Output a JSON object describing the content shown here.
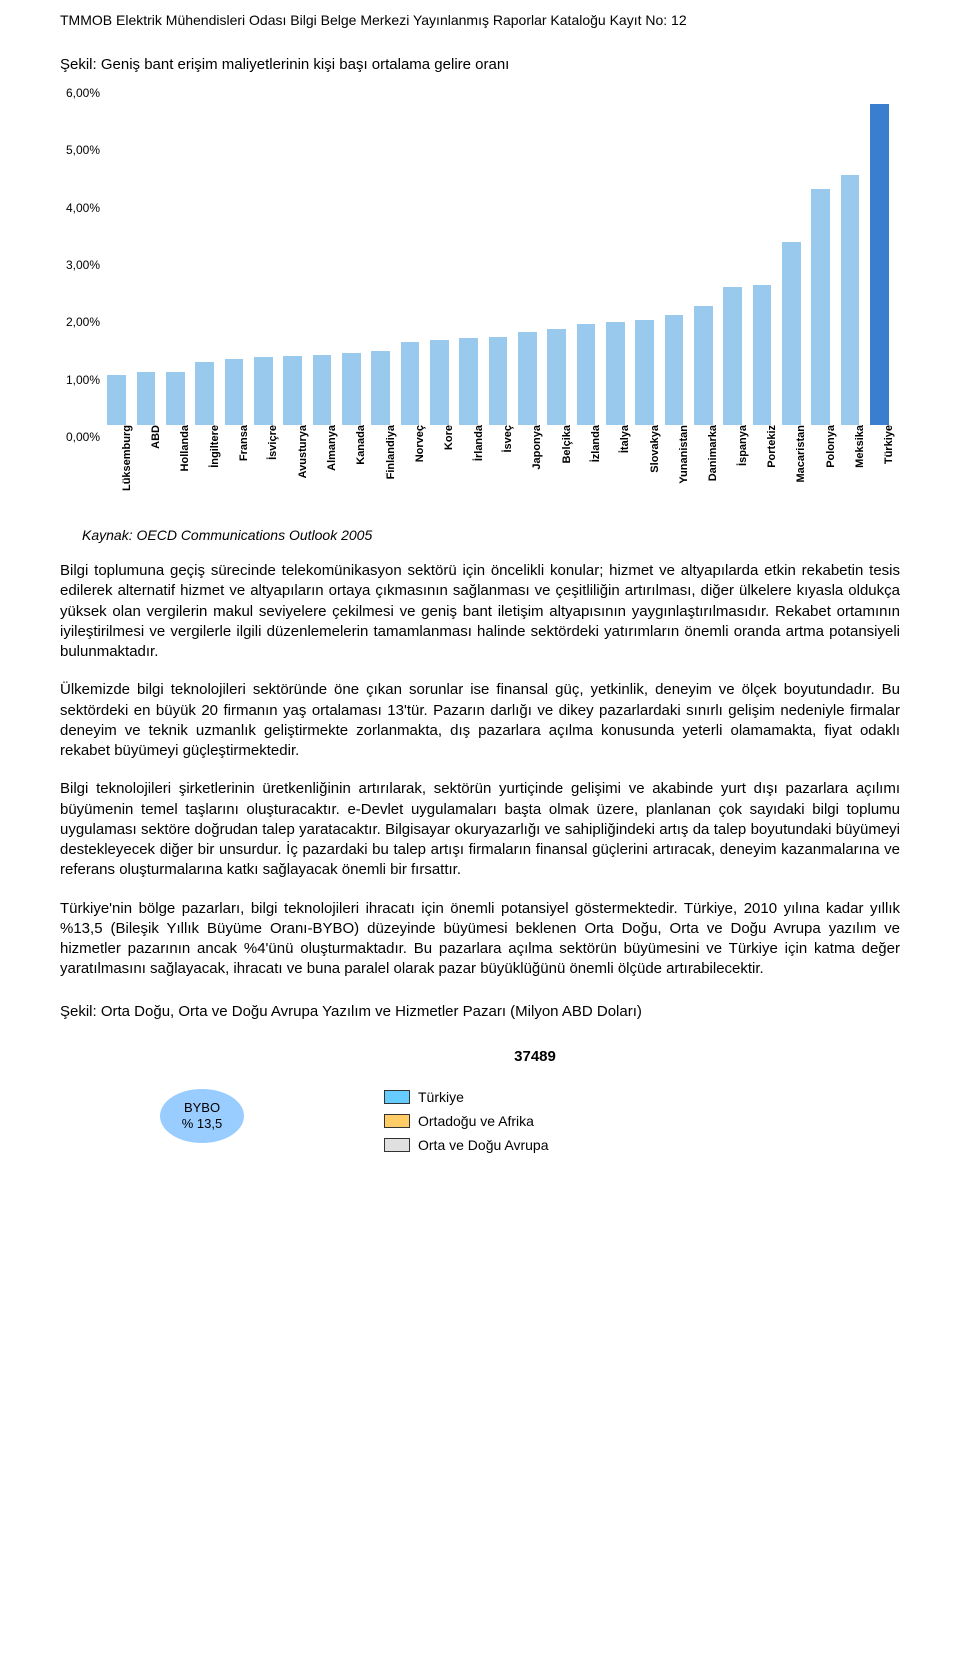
{
  "header_line": "TMMOB Elektrik Mühendisleri Odası Bilgi Belge Merkezi Yayınlanmış Raporlar Kataloğu Kayıt No: 12",
  "chart1": {
    "title": "Şekil: Geniş bant erişim maliyetlerinin kişi başı ortalama gelire oranı",
    "type": "bar",
    "ymax": 6.0,
    "ytick_step": 1.0,
    "y_suffix": ",00%",
    "bar_color_default": "#99c9ec",
    "bar_color_highlight": "#3a7ecf",
    "bar_width_ratio": 0.64,
    "background_color": "#ffffff",
    "label_fontsize": 11,
    "label_fontweight": "bold",
    "categories": [
      "Lüksemburg",
      "ABD",
      "Hollanda",
      "İngiltere",
      "Fransa",
      "İsviçre",
      "Avusturya",
      "Almanya",
      "Kanada",
      "Finlandiya",
      "Norveç",
      "Kore",
      "İrlanda",
      "İsveç",
      "Japonya",
      "Belçika",
      "İzlanda",
      "İtalya",
      "Slovakya",
      "Yunanistan",
      "Danimarka",
      "İspanya",
      "Portekiz",
      "Macaristan",
      "Polonya",
      "Meksika",
      "Türkiye"
    ],
    "values": [
      0.87,
      0.93,
      0.93,
      1.1,
      1.15,
      1.19,
      1.2,
      1.22,
      1.26,
      1.29,
      1.44,
      1.48,
      1.52,
      1.53,
      1.62,
      1.67,
      1.76,
      1.8,
      1.84,
      1.92,
      2.08,
      2.4,
      2.44,
      3.2,
      4.12,
      4.36,
      5.6
    ],
    "highlight_index": 26,
    "source": "Kaynak: OECD Communications Outlook 2005"
  },
  "paragraphs": {
    "p1": "Bilgi toplumuna geçiş sürecinde telekomünikasyon sektörü için öncelikli konular; hizmet ve altyapılarda etkin rekabetin tesis edilerek alternatif hizmet ve altyapıların ortaya çıkmasının sağlanması ve çeşitliliğin artırılması, diğer ülkelere kıyasla oldukça yüksek olan vergilerin makul seviyelere çekilmesi ve geniş bant iletişim altyapısının yaygınlaştırılmasıdır. Rekabet ortamının iyileştirilmesi ve vergilerle ilgili düzenlemelerin tamamlanması halinde sektördeki yatırımların önemli oranda artma potansiyeli bulunmaktadır.",
    "p2": "Ülkemizde bilgi teknolojileri sektöründe öne çıkan sorunlar ise finansal güç, yetkinlik, deneyim ve ölçek boyutundadır. Bu sektördeki en büyük 20 firmanın yaş ortalaması 13'tür. Pazarın darlığı ve dikey pazarlardaki sınırlı gelişim nedeniyle firmalar deneyim ve teknik uzmanlık geliştirmekte zorlanmakta, dış pazarlara açılma konusunda yeterli olamamakta, fiyat odaklı rekabet büyümeyi güçleştirmektedir.",
    "p3": "Bilgi teknolojileri şirketlerinin üretkenliğinin artırılarak, sektörün yurtiçinde gelişimi ve akabinde yurt dışı pazarlara açılımı büyümenin temel taşlarını oluşturacaktır. e-Devlet uygulamaları başta olmak üzere, planlanan çok sayıdaki bilgi toplumu uygulaması sektöre doğrudan talep yaratacaktır. Bilgisayar okuryazarlığı ve sahipliğindeki artış da talep boyutundaki büyümeyi destekleyecek diğer bir unsurdur. İç pazardaki bu talep artışı firmaların finansal güçlerini artıracak, deneyim kazanmalarına ve referans oluşturmalarına katkı sağlayacak önemli bir fırsattır.",
    "p4": "Türkiye'nin bölge pazarları, bilgi teknolojileri ihracatı için önemli potansiyel göstermektedir. Türkiye, 2010 yılına kadar yıllık %13,5 (Bileşik Yıllık Büyüme Oranı-BYBO) düzeyinde büyümesi beklenen Orta Doğu, Orta ve Doğu Avrupa yazılım ve hizmetler pazarının ancak %4'ünü oluşturmaktadır. Bu pazarlara açılma sektörün büyümesini ve Türkiye için katma değer yaratılmasını sağlayacak, ihracatı ve buna paralel olarak pazar büyüklüğünü önemli ölçüde artırabilecektir."
  },
  "chart2": {
    "title": "Şekil: Orta Doğu, Orta ve Doğu Avrupa Yazılım ve Hizmetler Pazarı (Milyon ABD Doları)",
    "top_value": "37489",
    "bybo_label": "BYBO",
    "bybo_value": "% 13,5",
    "bybo_bg": "#99ccff",
    "legend": [
      {
        "label": "Türkiye",
        "color": "#66ccff"
      },
      {
        "label": "Ortadoğu ve Afrika",
        "color": "#ffcc66"
      },
      {
        "label": "Orta ve Doğu Avrupa",
        "color": "#e0e0e0"
      }
    ]
  }
}
